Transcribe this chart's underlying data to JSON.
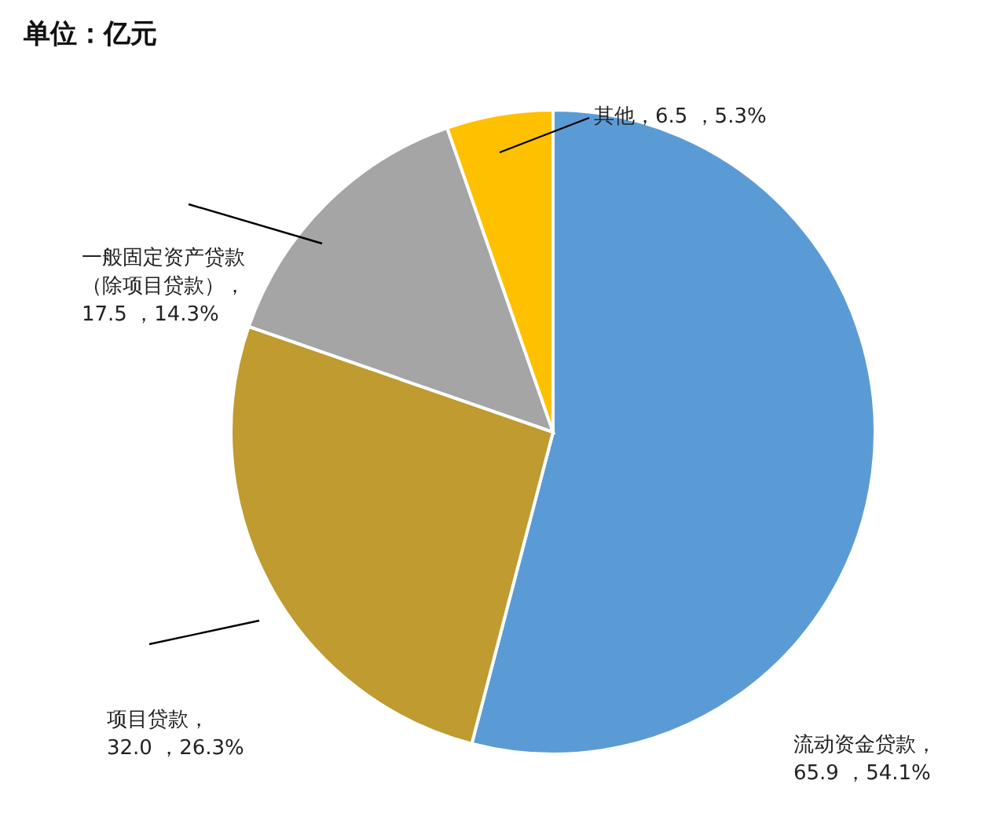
{
  "chart_data": {
    "type": "pie",
    "title": "单位：亿元",
    "categories": [
      "流动资金贷款",
      "项目贷款",
      "一般固定资产贷款（除项目贷款）",
      "其他"
    ],
    "values": [
      65.9,
      32.0,
      17.5,
      6.5
    ],
    "colors": [
      "#5b9bd5",
      "#bf9b30",
      "#a5a5a5",
      "#ffc000"
    ],
    "value_labels": [
      "，65.9 ，54.1%",
      "，32.0 ，26.3%",
      "，17.5 ，14.3%",
      "，6.5 ，5.3%"
    ]
  }
}
